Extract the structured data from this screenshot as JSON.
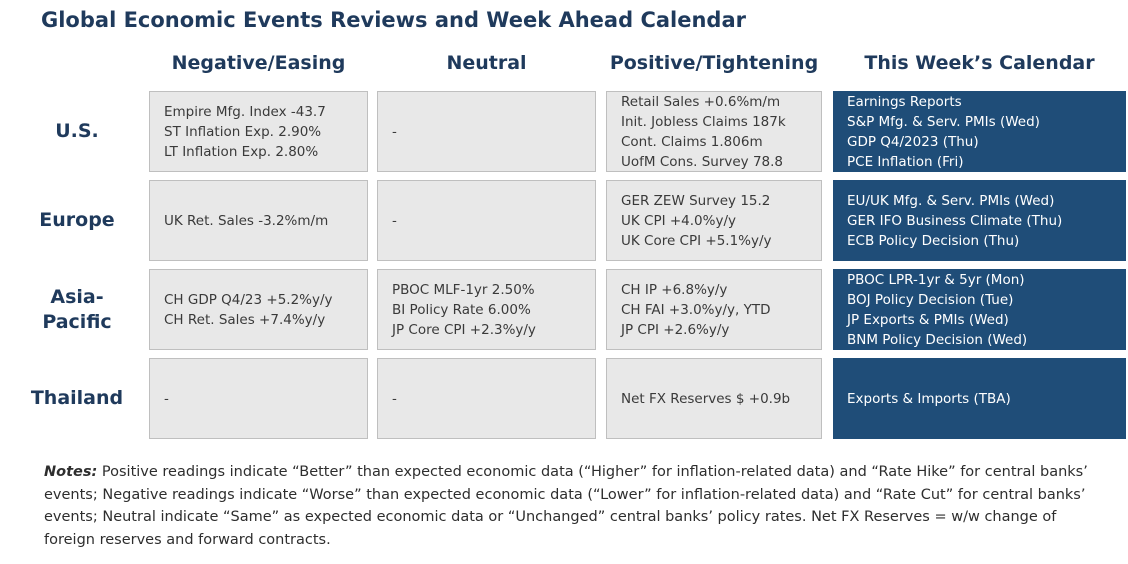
{
  "title": "Global Economic Events Reviews and Week Ahead Calendar",
  "columns": [
    "Negative/Easing",
    "Neutral",
    "Positive/Tightening",
    "This Week’s Calendar"
  ],
  "rows": [
    {
      "region": "U.S.",
      "negative": [
        "Empire Mfg. Index -43.7",
        "ST Inflation Exp. 2.90%",
        "LT Inflation Exp. 2.80%"
      ],
      "neutral": [
        "-"
      ],
      "positive": [
        "Retail Sales +0.6%m/m",
        "Init. Jobless Claims 187k",
        "Cont. Claims 1.806m",
        "UofM Cons. Survey 78.8"
      ],
      "calendar": [
        "Earnings Reports",
        "S&P Mfg. & Serv. PMIs (Wed)",
        "GDP Q4/2023 (Thu)",
        "PCE Inflation (Fri)"
      ]
    },
    {
      "region": "Europe",
      "negative": [
        "UK Ret. Sales -3.2%m/m"
      ],
      "neutral": [
        "-"
      ],
      "positive": [
        "GER ZEW Survey 15.2",
        "UK CPI +4.0%y/y",
        "UK Core CPI +5.1%y/y"
      ],
      "calendar": [
        "EU/UK Mfg. & Serv. PMIs (Wed)",
        "GER IFO Business Climate (Thu)",
        "ECB Policy Decision (Thu)"
      ]
    },
    {
      "region": "Asia-Pacific",
      "region_lines": [
        "Asia-",
        "Pacific"
      ],
      "negative": [
        "CH GDP Q4/23 +5.2%y/y",
        "CH Ret. Sales +7.4%y/y"
      ],
      "neutral": [
        "PBOC MLF-1yr 2.50%",
        "BI Policy Rate 6.00%",
        "JP Core CPI +2.3%y/y"
      ],
      "positive": [
        "CH IP +6.8%y/y",
        "CH FAI +3.0%y/y, YTD",
        "JP CPI +2.6%y/y"
      ],
      "calendar": [
        "PBOC LPR-1yr & 5yr (Mon)",
        "BOJ Policy Decision (Tue)",
        "JP Exports & PMIs (Wed)",
        "BNM Policy Decision (Wed)"
      ]
    },
    {
      "region": "Thailand",
      "negative": [
        "-"
      ],
      "neutral": [
        "-"
      ],
      "positive": [
        "Net FX Reserves $ +0.9b"
      ],
      "calendar": [
        "Exports & Imports (TBA)"
      ]
    }
  ],
  "notes": {
    "label": "Notes:",
    "text": " Positive readings indicate “Better” than expected economic data (“Higher” for inflation-related data) and “Rate Hike” for central banks’ events; Negative readings indicate “Worse” than expected economic data (“Lower” for inflation-related data) and “Rate Cut” for central banks’ events; Neutral indicate “Same” as expected economic data or “Unchanged” central banks’ policy rates. Net FX Reserves = w/w change of foreign reserves and forward contracts."
  },
  "colors": {
    "header_text": "#1f3a5c",
    "calendar_bg": "#1f4d78",
    "cell_bg": "#e8e8e8"
  }
}
